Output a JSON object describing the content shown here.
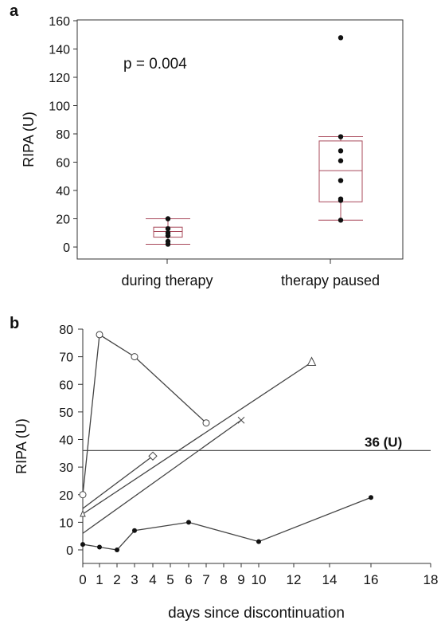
{
  "chart_data": [
    {
      "panel_label": "a",
      "type": "box",
      "ylabel": "RIPA (U)",
      "ylim": [
        0,
        160
      ],
      "yticks": [
        "0",
        "20",
        "40",
        "60",
        "80",
        "100",
        "120",
        "140",
        "160"
      ],
      "categories": [
        "during therapy",
        "therapy paused"
      ],
      "annotation": "p = 0.004",
      "grid": false,
      "boxes": [
        {
          "category": "during therapy",
          "whisker_low": 2,
          "q1": 7,
          "median": 11,
          "q3": 14,
          "whisker_high": 20,
          "points": [
            2,
            4,
            8,
            10,
            13,
            20
          ]
        },
        {
          "category": "therapy paused",
          "whisker_low": 19,
          "q1": 32,
          "median": 54,
          "q3": 75,
          "whisker_high": 78,
          "points": [
            19,
            33,
            34,
            47,
            61,
            68,
            78,
            148
          ]
        }
      ],
      "colors": {
        "box": "#a8485a",
        "point": "#111111"
      }
    },
    {
      "panel_label": "b",
      "type": "line",
      "xlabel": "days since discontinuation",
      "ylabel": "RIPA (U)",
      "xlim": [
        0,
        18
      ],
      "ylim": [
        0,
        80
      ],
      "xticks": [
        "0",
        "1",
        "2",
        "3",
        "4",
        "5",
        "6",
        "7",
        "8",
        "9",
        "10",
        "12",
        "14",
        "16",
        "18"
      ],
      "yticks": [
        "0",
        "10",
        "20",
        "30",
        "40",
        "50",
        "60",
        "70",
        "80"
      ],
      "grid": false,
      "reference_line": {
        "y": 36,
        "label": "36 (U)"
      },
      "series": [
        {
          "marker": "circle",
          "x": [
            0,
            1,
            3,
            7
          ],
          "y": [
            20,
            78,
            70,
            46
          ]
        },
        {
          "marker": "triangle",
          "x": [
            0,
            13
          ],
          "y": [
            13,
            68
          ]
        },
        {
          "marker": "x",
          "x": [
            0,
            9
          ],
          "y": [
            6,
            47
          ]
        },
        {
          "marker": "diamond",
          "x": [
            0,
            4
          ],
          "y": [
            15,
            34
          ]
        },
        {
          "marker": "dot",
          "x": [
            0,
            1,
            2,
            3,
            6,
            10,
            16
          ],
          "y": [
            2,
            1,
            0,
            7,
            10,
            3,
            19
          ]
        }
      ]
    }
  ]
}
